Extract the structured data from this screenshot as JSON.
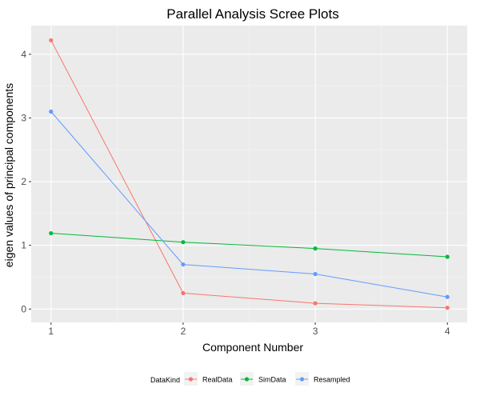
{
  "chart_data": {
    "type": "line",
    "title": "Parallel Analysis Scree Plots",
    "xlabel": "Component Number",
    "ylabel": "eigen values of principal components",
    "x": [
      1,
      2,
      3,
      4
    ],
    "xticks": [
      "1",
      "2",
      "3",
      "4"
    ],
    "yticks": [
      "0",
      "1",
      "2",
      "3",
      "4"
    ],
    "xlim": [
      0.85,
      4.15
    ],
    "ylim": [
      -0.21,
      4.45
    ],
    "grid": true,
    "legend_position": "bottom",
    "legend_title": "DataKind",
    "series": [
      {
        "name": "RealData",
        "color": "#F8766D",
        "values": [
          4.22,
          0.25,
          0.09,
          0.02
        ]
      },
      {
        "name": "SimData",
        "color": "#00BA38",
        "values": [
          1.19,
          1.05,
          0.95,
          0.82
        ]
      },
      {
        "name": "Resampled",
        "color": "#619CFF",
        "values": [
          3.1,
          0.7,
          0.55,
          0.19
        ]
      }
    ],
    "colors": {
      "panel_background": "#EBEBEB",
      "grid_major": "#FFFFFF",
      "grid_minor": "#F5F5F5",
      "tick_text": "#4D4D4D",
      "tick_mark": "#333333",
      "legend_key_background": "#F2F2F2"
    }
  }
}
